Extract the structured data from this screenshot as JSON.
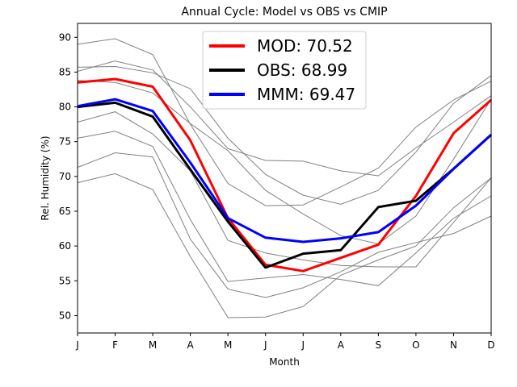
{
  "chart_data": {
    "type": "line",
    "title": "Annual Cycle: Model vs OBS vs CMIP",
    "xlabel": "Month",
    "ylabel": "Rel. Humidity (%)",
    "categories": [
      "J",
      "F",
      "M",
      "A",
      "M",
      "J",
      "J",
      "A",
      "S",
      "O",
      "N",
      "D"
    ],
    "ylim": [
      47.5,
      92.0
    ],
    "yticks": [
      50,
      55,
      60,
      65,
      70,
      75,
      80,
      85,
      90
    ],
    "grid": false,
    "legend_position": "top-center",
    "series": [
      {
        "name": "MOD: 70.52",
        "color": "#ff0000",
        "values": [
          83.5,
          84.0,
          82.9,
          75.2,
          64.0,
          57.3,
          56.4,
          58.3,
          60.2,
          67.2,
          76.2,
          81.0
        ]
      },
      {
        "name": "OBS: 68.99",
        "color": "#000000",
        "values": [
          80.0,
          80.6,
          78.6,
          71.0,
          63.5,
          56.9,
          58.9,
          59.4,
          65.6,
          66.5,
          71.1,
          76.0
        ]
      },
      {
        "name": "MMM: 69.47",
        "color": "#0000ff",
        "values": [
          80.1,
          81.1,
          79.4,
          72.0,
          64.0,
          61.2,
          60.6,
          61.1,
          62.0,
          65.8,
          71.1,
          76.0
        ]
      }
    ],
    "cmip_models": [
      {
        "color": "#808080",
        "values": [
          89.0,
          89.8,
          87.5,
          77.5,
          69.0,
          65.8,
          65.9,
          68.5,
          71.2,
          77.1,
          81.0,
          83.7
        ]
      },
      {
        "color": "#808080",
        "values": [
          85.7,
          85.8,
          84.9,
          82.6,
          75.5,
          70.3,
          67.3,
          66.0,
          68.0,
          73.5,
          80.5,
          84.5
        ]
      },
      {
        "color": "#808080",
        "values": [
          85.1,
          86.6,
          85.3,
          80.0,
          74.0,
          72.3,
          72.2,
          70.8,
          70.1,
          74.1,
          77.8,
          81.6
        ]
      },
      {
        "color": "#808080",
        "values": [
          83.8,
          83.5,
          82.0,
          77.6,
          73.7,
          68.0,
          64.6,
          61.5,
          60.3,
          64.3,
          72.5,
          81.1
        ]
      },
      {
        "color": "#808080",
        "values": [
          77.8,
          79.3,
          76.1,
          70.8,
          60.8,
          59.0,
          58.0,
          57.2,
          57.0,
          57.0,
          63.4,
          69.8
        ]
      },
      {
        "color": "#808080",
        "values": [
          75.5,
          76.5,
          74.3,
          63.8,
          54.9,
          55.4,
          55.9,
          55.2,
          54.3,
          59.0,
          64.0,
          67.2
        ]
      },
      {
        "color": "#808080",
        "values": [
          71.3,
          73.4,
          72.8,
          61.0,
          53.8,
          52.6,
          54.0,
          56.3,
          59.1,
          60.5,
          61.8,
          64.3
        ]
      },
      {
        "color": "#808080",
        "values": [
          69.1,
          70.4,
          68.1,
          58.5,
          49.7,
          49.8,
          51.3,
          55.8,
          58.0,
          60.0,
          65.5,
          69.8
        ]
      }
    ]
  }
}
